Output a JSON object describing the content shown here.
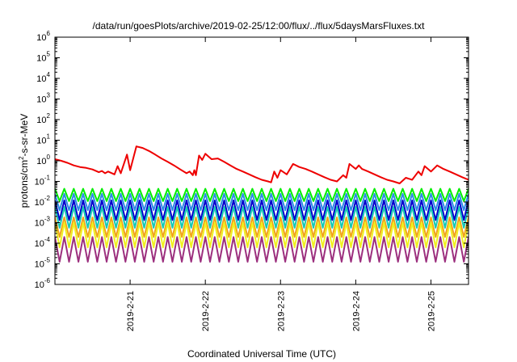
{
  "chart_data": {
    "type": "line",
    "title": "/data/run/goesPlots/archive/2019-02-25/12:00/flux/../flux/5daysMarsFluxes.txt",
    "xlabel": "Coordinated Universal Time (UTC)",
    "ylabel": "protons/cm2-s-sr-MeV",
    "y_scale": "log",
    "ylim": [
      1e-06,
      1000000.0
    ],
    "xlim": [
      "2019-02-20T00:00",
      "2019-02-25T12:00"
    ],
    "grid": false,
    "legend": "none",
    "y_ticks": [
      {
        "value": 1e-06,
        "base": "10",
        "exp": "-6"
      },
      {
        "value": 1e-05,
        "base": "10",
        "exp": "-5"
      },
      {
        "value": 0.0001,
        "base": "10",
        "exp": "-4"
      },
      {
        "value": 0.001,
        "base": "10",
        "exp": "-3"
      },
      {
        "value": 0.01,
        "base": "10",
        "exp": "-2"
      },
      {
        "value": 0.1,
        "base": "10",
        "exp": "-1"
      },
      {
        "value": 1,
        "base": "10",
        "exp": "0"
      },
      {
        "value": 10,
        "base": "10",
        "exp": "1"
      },
      {
        "value": 100,
        "base": "10",
        "exp": "2"
      },
      {
        "value": 1000,
        "base": "10",
        "exp": "3"
      },
      {
        "value": 10000,
        "base": "10",
        "exp": "4"
      },
      {
        "value": 100000,
        "base": "10",
        "exp": "5"
      },
      {
        "value": 1000000,
        "base": "10",
        "exp": "6"
      }
    ],
    "x_ticks": [
      {
        "value": "2019-02-21T00:00",
        "label": "2019-2-21"
      },
      {
        "value": "2019-02-22T00:00",
        "label": "2019-2-22"
      },
      {
        "value": "2019-02-23T00:00",
        "label": "2019-2-23"
      },
      {
        "value": "2019-02-24T00:00",
        "label": "2019-2-24"
      },
      {
        "value": "2019-02-25T00:00",
        "label": "2019-2-25"
      }
    ],
    "series": [
      {
        "color": "#ee0000",
        "x": [
          "2019-02-20T00:00",
          "2019-02-20T02:00",
          "2019-02-20T04:00",
          "2019-02-20T06:00",
          "2019-02-20T08:00",
          "2019-02-20T10:00",
          "2019-02-20T12:00",
          "2019-02-20T14:00",
          "2019-02-20T15:00",
          "2019-02-20T16:00",
          "2019-02-20T17:00",
          "2019-02-20T19:00",
          "2019-02-20T20:00",
          "2019-02-20T21:00",
          "2019-02-20T23:00",
          "2019-02-21T00:00",
          "2019-02-21T02:00",
          "2019-02-21T04:00",
          "2019-02-21T06:00",
          "2019-02-21T08:00",
          "2019-02-21T10:00",
          "2019-02-21T12:00",
          "2019-02-21T14:00",
          "2019-02-21T16:00",
          "2019-02-21T18:00",
          "2019-02-21T19:00",
          "2019-02-21T20:00",
          "2019-02-21T20:30",
          "2019-02-21T21:00",
          "2019-02-21T22:00",
          "2019-02-21T23:00",
          "2019-02-22T00:00",
          "2019-02-22T02:00",
          "2019-02-22T04:00",
          "2019-02-22T06:00",
          "2019-02-22T08:00",
          "2019-02-22T10:00",
          "2019-02-22T12:00",
          "2019-02-22T14:00",
          "2019-02-22T16:00",
          "2019-02-22T18:00",
          "2019-02-22T20:00",
          "2019-02-22T21:00",
          "2019-02-22T22:00",
          "2019-02-22T23:00",
          "2019-02-23T00:00",
          "2019-02-23T02:00",
          "2019-02-23T04:00",
          "2019-02-23T06:00",
          "2019-02-23T08:00",
          "2019-02-23T10:00",
          "2019-02-23T12:00",
          "2019-02-23T14:00",
          "2019-02-23T16:00",
          "2019-02-23T18:00",
          "2019-02-23T20:00",
          "2019-02-23T21:00",
          "2019-02-23T22:00",
          "2019-02-24T00:00",
          "2019-02-24T01:00",
          "2019-02-24T02:00",
          "2019-02-24T04:00",
          "2019-02-24T06:00",
          "2019-02-24T08:00",
          "2019-02-24T10:00",
          "2019-02-24T12:00",
          "2019-02-24T14:00",
          "2019-02-24T16:00",
          "2019-02-24T18:00",
          "2019-02-24T20:00",
          "2019-02-24T21:00",
          "2019-02-24T22:00",
          "2019-02-25T00:00",
          "2019-02-25T02:00",
          "2019-02-25T04:00",
          "2019-02-25T06:00",
          "2019-02-25T08:00",
          "2019-02-25T10:00",
          "2019-02-25T12:00"
        ],
        "y": [
          1.2,
          1.0,
          0.8,
          0.6,
          0.5,
          0.45,
          0.38,
          0.28,
          0.32,
          0.25,
          0.3,
          0.22,
          0.55,
          0.25,
          2.0,
          0.35,
          5.0,
          4.2,
          3.0,
          2.0,
          1.3,
          0.9,
          0.6,
          0.38,
          0.25,
          0.3,
          0.2,
          0.35,
          0.2,
          1.8,
          1.1,
          2.2,
          1.2,
          1.3,
          0.9,
          0.6,
          0.4,
          0.3,
          0.22,
          0.16,
          0.12,
          0.1,
          0.09,
          0.3,
          0.15,
          0.35,
          0.22,
          0.7,
          0.5,
          0.4,
          0.3,
          0.22,
          0.16,
          0.12,
          0.1,
          0.2,
          0.15,
          0.7,
          0.4,
          0.6,
          0.4,
          0.3,
          0.22,
          0.16,
          0.12,
          0.1,
          0.08,
          0.15,
          0.12,
          0.3,
          0.2,
          0.55,
          0.3,
          0.6,
          0.4,
          0.3,
          0.22,
          0.16,
          0.12
        ]
      },
      {
        "color": "#00ee00",
        "base": 0.022,
        "amp": 2.0,
        "cycles": 44
      },
      {
        "color": "#2a8ae6",
        "base": 0.01,
        "amp": 2.5,
        "cycles": 44
      },
      {
        "color": "#0000cc",
        "base": 0.004,
        "amp": 3.0,
        "cycles": 44
      },
      {
        "color": "#17c9b4",
        "base": 0.0018,
        "amp": 3.2,
        "cycles": 44
      },
      {
        "color": "#f0a418",
        "base": 0.0006,
        "amp": 3.0,
        "cycles": 44
      },
      {
        "color": "#f0f020",
        "base": 0.00025,
        "amp": 4.0,
        "cycles": 44
      },
      {
        "color": "#9c2f7e",
        "base": 5e-05,
        "amp": 4.0,
        "cycles": 44
      }
    ]
  }
}
